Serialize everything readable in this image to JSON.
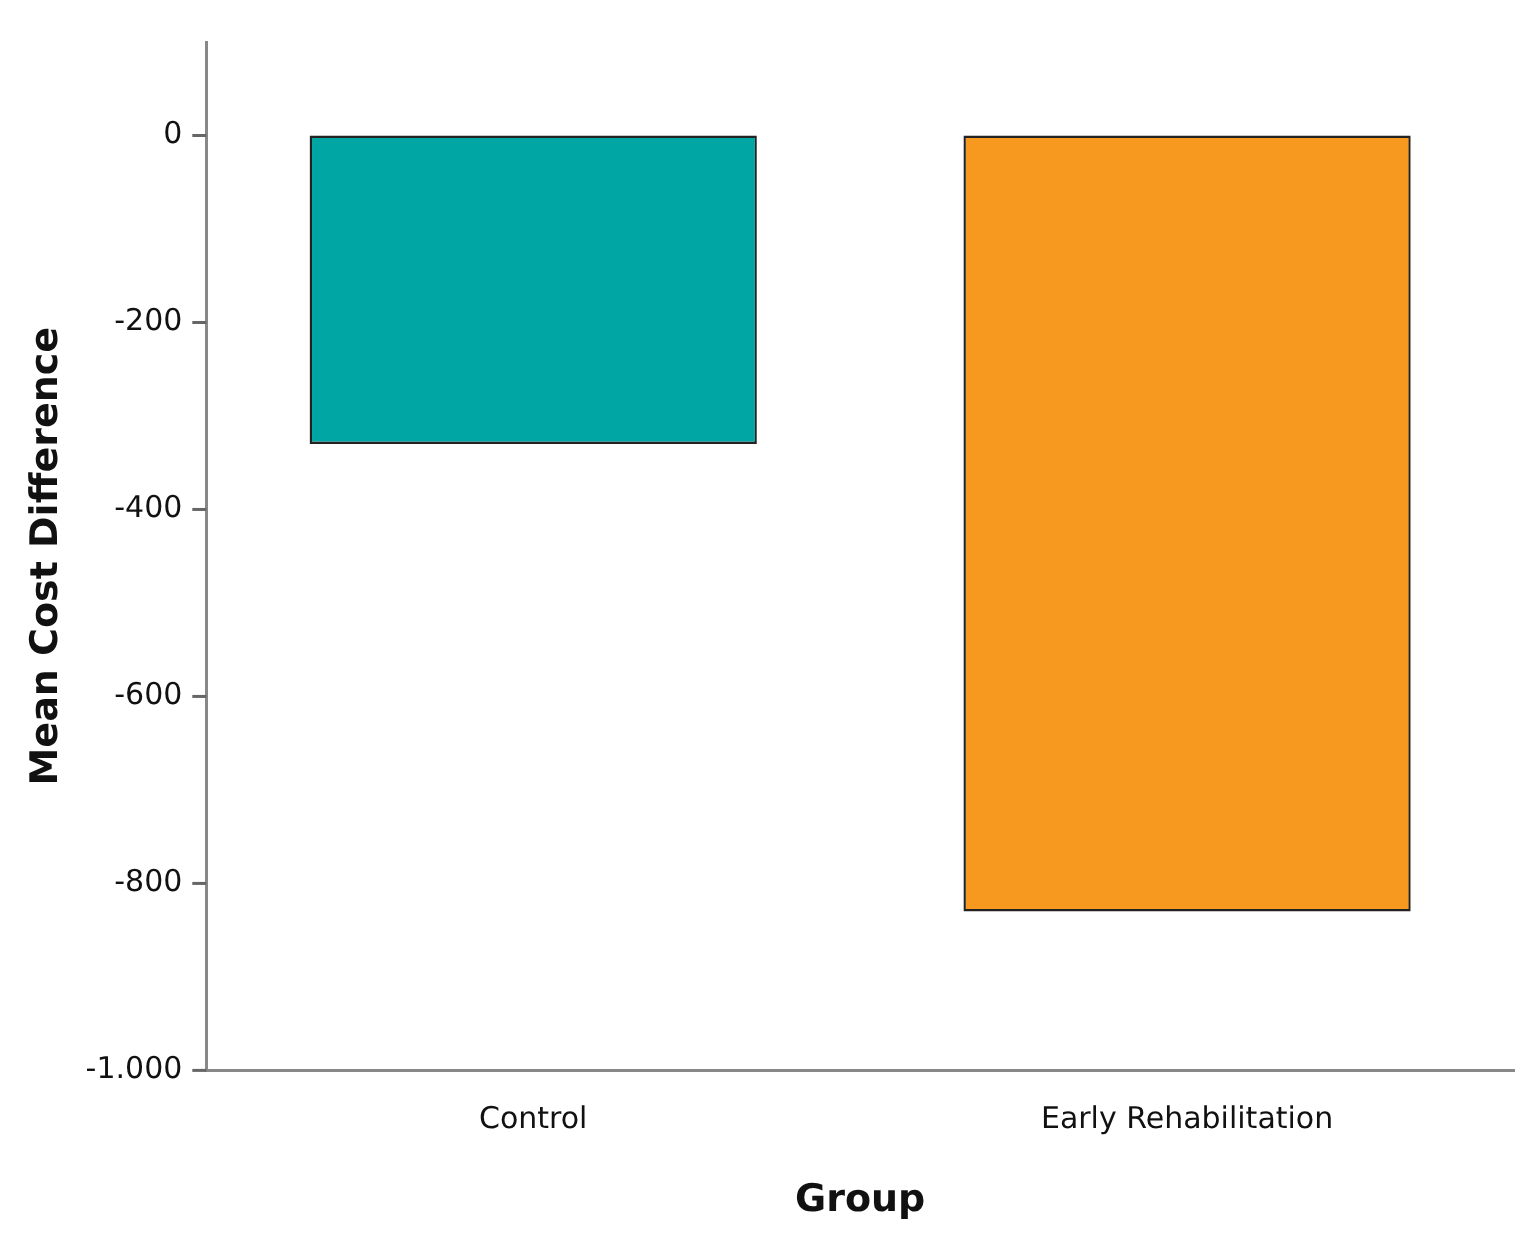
{
  "chart_data": {
    "type": "bar",
    "xlabel": "Group",
    "ylabel": "Mean Cost Difference",
    "categories": [
      "Control",
      "Early Rehabilitation"
    ],
    "values": [
      -330,
      -830
    ],
    "colors": [
      "#00a6a3",
      "#f7991f"
    ],
    "ylim": [
      -1000,
      100
    ],
    "yticks": [
      0,
      -200,
      -400,
      -600,
      -800,
      {
        "value": -1000,
        "label": "-1.000"
      }
    ],
    "grid": false,
    "legend": false
  }
}
